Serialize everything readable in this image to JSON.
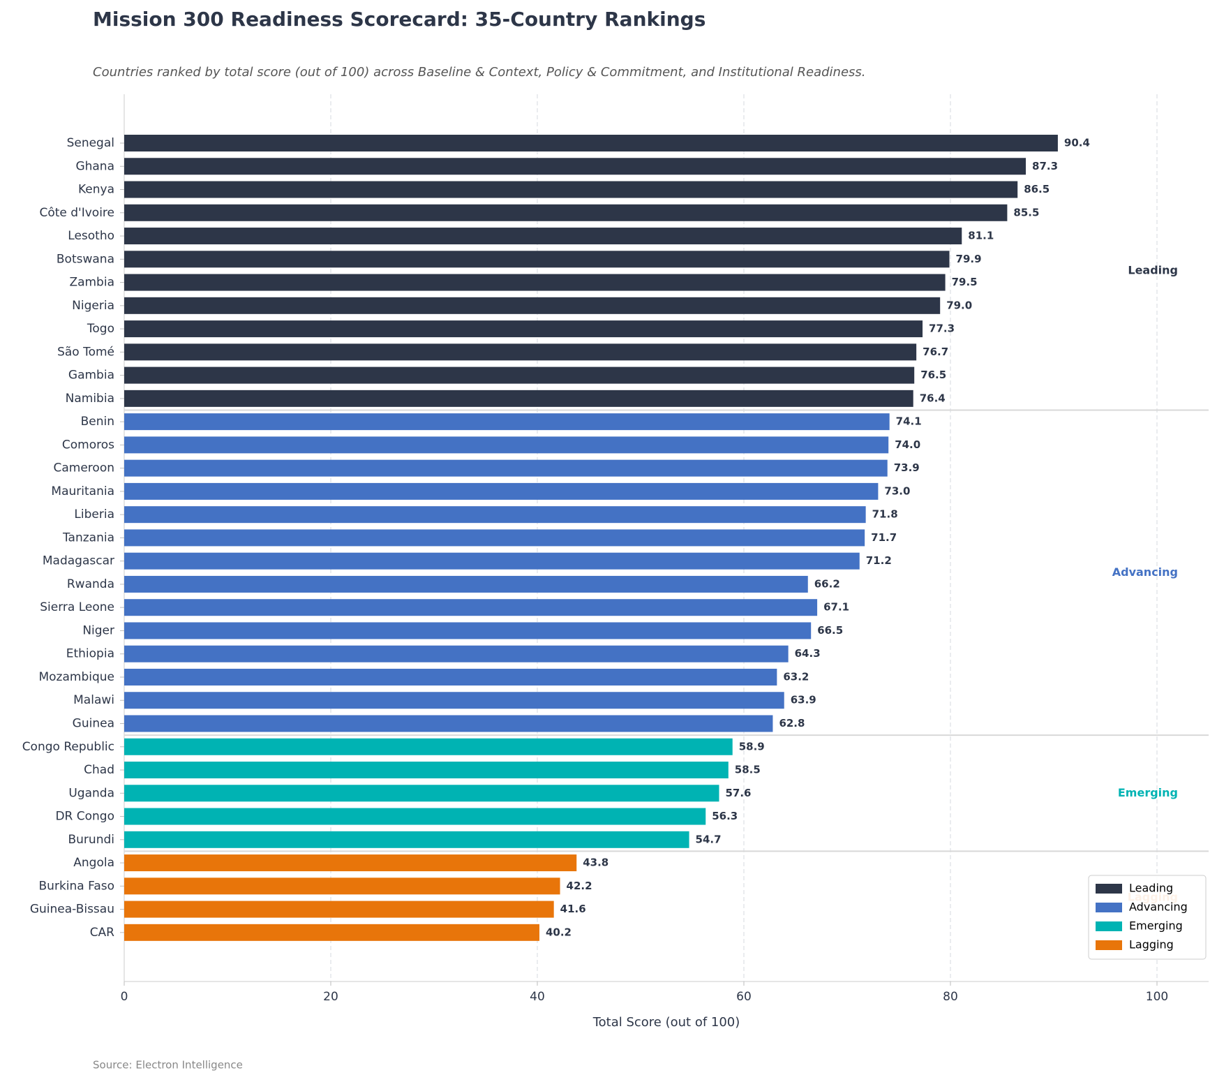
{
  "chart_data": {
    "type": "bar",
    "orientation": "horizontal",
    "title": "Mission 300 Readiness Scorecard: 35-Country Rankings",
    "subtitle": "Countries ranked by total score (out of 100) across Baseline & Context, Policy & Commitment, and Institutional Readiness.",
    "x_label": "Total Score (out of 100)",
    "source": "Source: Electron Intelligence",
    "categories": [
      "Senegal",
      "Ghana",
      "Kenya",
      "Côte d'Ivoire",
      "Lesotho",
      "Botswana",
      "Zambia",
      "Nigeria",
      "Togo",
      "São Tomé",
      "Gambia",
      "Namibia",
      "Benin",
      "Comoros",
      "Cameroon",
      "Mauritania",
      "Liberia",
      "Tanzania",
      "Madagascar",
      "Rwanda",
      "Sierra Leone",
      "Niger",
      "Ethiopia",
      "Mozambique",
      "Malawi",
      "Guinea",
      "Congo Republic",
      "Chad",
      "Uganda",
      "DR Congo",
      "Burundi",
      "Angola",
      "Burkina Faso",
      "Guinea-Bissau",
      "CAR"
    ],
    "series": [
      {
        "name": "Leading",
        "color": "#2d3648",
        "values": [
          90.4,
          87.3,
          86.5,
          85.5,
          81.1,
          79.9,
          79.5,
          79.0,
          77.3,
          76.7,
          76.5,
          76.4,
          null,
          null,
          null,
          null,
          null,
          null,
          null,
          null,
          null,
          null,
          null,
          null,
          null,
          null,
          null,
          null,
          null,
          null,
          null,
          null,
          null,
          null,
          null
        ],
        "value_labels": [
          "90.4",
          "87.3",
          "86.5",
          "85.5",
          "81.1",
          "79.9",
          "79.5",
          "79.0",
          "77.3",
          "76.7",
          "76.5",
          "76.4",
          null,
          null,
          null,
          null,
          null,
          null,
          null,
          null,
          null,
          null,
          null,
          null,
          null,
          null,
          null,
          null,
          null,
          null,
          null,
          null,
          null,
          null,
          null
        ]
      },
      {
        "name": "Advancing",
        "color": "#4472c4",
        "values": [
          null,
          null,
          null,
          null,
          null,
          null,
          null,
          null,
          null,
          null,
          null,
          null,
          74.1,
          74.0,
          73.9,
          73.0,
          71.8,
          71.7,
          71.2,
          66.2,
          67.1,
          66.5,
          64.3,
          63.2,
          63.9,
          62.8,
          null,
          null,
          null,
          null,
          null,
          null,
          null,
          null,
          null
        ],
        "value_labels": [
          null,
          null,
          null,
          null,
          null,
          null,
          null,
          null,
          null,
          null,
          null,
          null,
          "74.1",
          "74.0",
          "73.9",
          "73.0",
          "71.8",
          "71.7",
          "71.2",
          "66.2",
          "67.1",
          "66.5",
          "64.3",
          "63.2",
          "63.9",
          "62.8",
          null,
          null,
          null,
          null,
          null,
          null,
          null,
          null,
          null
        ]
      },
      {
        "name": "Emerging",
        "color": "#00b3b3",
        "values": [
          null,
          null,
          null,
          null,
          null,
          null,
          null,
          null,
          null,
          null,
          null,
          null,
          null,
          null,
          null,
          null,
          null,
          null,
          null,
          null,
          null,
          null,
          null,
          null,
          null,
          null,
          58.9,
          58.5,
          57.6,
          56.3,
          54.7,
          null,
          null,
          null,
          null
        ],
        "value_labels": [
          null,
          null,
          null,
          null,
          null,
          null,
          null,
          null,
          null,
          null,
          null,
          null,
          null,
          null,
          null,
          null,
          null,
          null,
          null,
          null,
          null,
          null,
          null,
          null,
          null,
          null,
          "58.9",
          "58.5",
          "57.6",
          "56.3",
          "54.7",
          null,
          null,
          null,
          null
        ]
      },
      {
        "name": "Lagging",
        "color": "#e8750a",
        "values": [
          null,
          null,
          null,
          null,
          null,
          null,
          null,
          null,
          null,
          null,
          null,
          null,
          null,
          null,
          null,
          null,
          null,
          null,
          null,
          null,
          null,
          null,
          null,
          null,
          null,
          null,
          null,
          null,
          null,
          null,
          null,
          43.8,
          42.2,
          41.6,
          40.2
        ],
        "value_labels": [
          null,
          null,
          null,
          null,
          null,
          null,
          null,
          null,
          null,
          null,
          null,
          null,
          null,
          null,
          null,
          null,
          null,
          null,
          null,
          null,
          null,
          null,
          null,
          null,
          null,
          null,
          null,
          null,
          null,
          null,
          null,
          "43.8",
          "42.2",
          "41.6",
          "40.2"
        ]
      }
    ],
    "xlim": [
      0,
      105
    ],
    "xticks": [
      0,
      20,
      40,
      60,
      80,
      100
    ],
    "grid": true,
    "legend": "lower right"
  }
}
